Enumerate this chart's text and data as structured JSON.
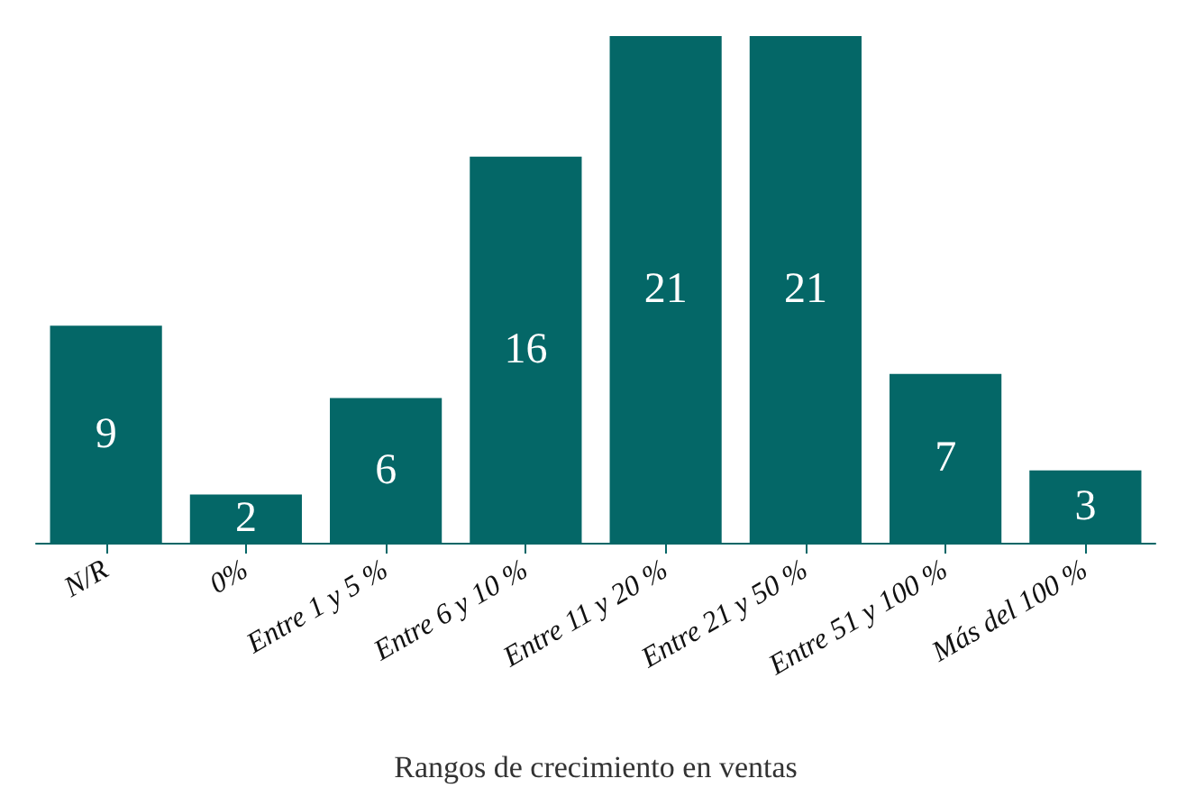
{
  "chart_data": {
    "type": "bar",
    "xlabel": "Rangos de crecimiento en ventas",
    "categories": [
      "N/R",
      "0%",
      "Entre 1 y 5 %",
      "Entre 6 y 10 %",
      "Entre 11 y 20 %",
      "Entre 21 y 50 %",
      "Entre 51 y 100 %",
      "Más del 100 %"
    ],
    "values": [
      9,
      2,
      6,
      16,
      21,
      21,
      7,
      3
    ],
    "color": "#046767",
    "data_labels": true
  }
}
